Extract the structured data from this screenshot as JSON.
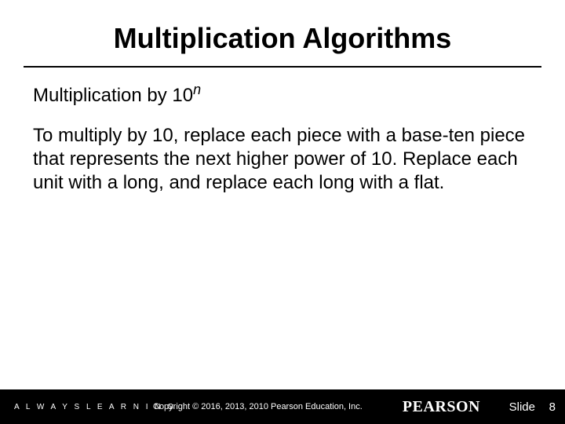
{
  "title": "Multiplication Algorithms",
  "subtitle_prefix": "Multiplication by 10",
  "subtitle_exp": "n",
  "body": "To multiply by 10, replace each piece with a base-ten piece that represents the next higher power of 10. Replace each unit with a long, and replace each long with a flat.",
  "footer": {
    "left_tagline": "A L W A Y S   L E A R N I N G",
    "copyright": "Copyright © 2016, 2013, 2010 Pearson Education, Inc.",
    "brand": "PEARSON",
    "slide_label": "Slide",
    "page_number": "8"
  },
  "colors": {
    "background": "#ffffff",
    "text": "#000000",
    "footer_bg": "#000000",
    "footer_text": "#ffffff"
  },
  "typography": {
    "title_fontsize": 36,
    "subtitle_fontsize": 24,
    "body_fontsize": 24,
    "footer_small_fontsize": 11,
    "footer_brand_fontsize": 20
  }
}
